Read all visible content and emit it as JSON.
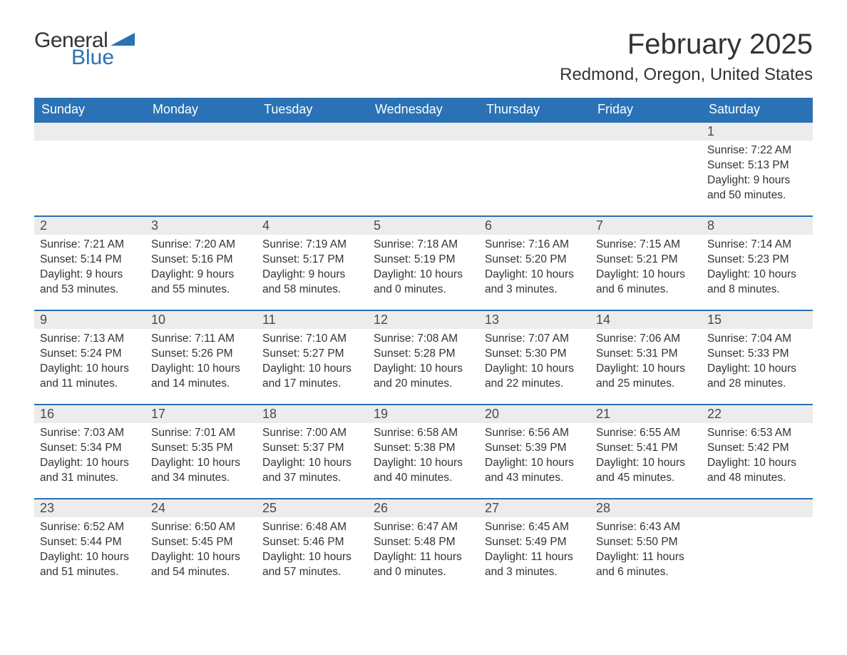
{
  "brand": {
    "word1": "General",
    "word2": "Blue",
    "tri_color": "#2a72b5"
  },
  "header": {
    "month_title": "February 2025",
    "location": "Redmond, Oregon, United States"
  },
  "colors": {
    "header_bg": "#2a72b5",
    "header_text": "#ffffff",
    "daynum_bg": "#ececec",
    "row_border": "#2a72b5",
    "text": "#333333",
    "background": "#ffffff"
  },
  "typography": {
    "title_fontsize": 40,
    "location_fontsize": 24,
    "th_fontsize": 18,
    "daynum_fontsize": 18,
    "body_fontsize": 15.5,
    "font_family": "Segoe UI"
  },
  "calendar": {
    "day_headers": [
      "Sunday",
      "Monday",
      "Tuesday",
      "Wednesday",
      "Thursday",
      "Friday",
      "Saturday"
    ],
    "weeks": [
      [
        null,
        null,
        null,
        null,
        null,
        null,
        {
          "n": "1",
          "sunrise": "7:22 AM",
          "sunset": "5:13 PM",
          "dl_h": "9",
          "dl_m": "50"
        }
      ],
      [
        {
          "n": "2",
          "sunrise": "7:21 AM",
          "sunset": "5:14 PM",
          "dl_h": "9",
          "dl_m": "53"
        },
        {
          "n": "3",
          "sunrise": "7:20 AM",
          "sunset": "5:16 PM",
          "dl_h": "9",
          "dl_m": "55"
        },
        {
          "n": "4",
          "sunrise": "7:19 AM",
          "sunset": "5:17 PM",
          "dl_h": "9",
          "dl_m": "58"
        },
        {
          "n": "5",
          "sunrise": "7:18 AM",
          "sunset": "5:19 PM",
          "dl_h": "10",
          "dl_m": "0"
        },
        {
          "n": "6",
          "sunrise": "7:16 AM",
          "sunset": "5:20 PM",
          "dl_h": "10",
          "dl_m": "3"
        },
        {
          "n": "7",
          "sunrise": "7:15 AM",
          "sunset": "5:21 PM",
          "dl_h": "10",
          "dl_m": "6"
        },
        {
          "n": "8",
          "sunrise": "7:14 AM",
          "sunset": "5:23 PM",
          "dl_h": "10",
          "dl_m": "8"
        }
      ],
      [
        {
          "n": "9",
          "sunrise": "7:13 AM",
          "sunset": "5:24 PM",
          "dl_h": "10",
          "dl_m": "11"
        },
        {
          "n": "10",
          "sunrise": "7:11 AM",
          "sunset": "5:26 PM",
          "dl_h": "10",
          "dl_m": "14"
        },
        {
          "n": "11",
          "sunrise": "7:10 AM",
          "sunset": "5:27 PM",
          "dl_h": "10",
          "dl_m": "17"
        },
        {
          "n": "12",
          "sunrise": "7:08 AM",
          "sunset": "5:28 PM",
          "dl_h": "10",
          "dl_m": "20"
        },
        {
          "n": "13",
          "sunrise": "7:07 AM",
          "sunset": "5:30 PM",
          "dl_h": "10",
          "dl_m": "22"
        },
        {
          "n": "14",
          "sunrise": "7:06 AM",
          "sunset": "5:31 PM",
          "dl_h": "10",
          "dl_m": "25"
        },
        {
          "n": "15",
          "sunrise": "7:04 AM",
          "sunset": "5:33 PM",
          "dl_h": "10",
          "dl_m": "28"
        }
      ],
      [
        {
          "n": "16",
          "sunrise": "7:03 AM",
          "sunset": "5:34 PM",
          "dl_h": "10",
          "dl_m": "31"
        },
        {
          "n": "17",
          "sunrise": "7:01 AM",
          "sunset": "5:35 PM",
          "dl_h": "10",
          "dl_m": "34"
        },
        {
          "n": "18",
          "sunrise": "7:00 AM",
          "sunset": "5:37 PM",
          "dl_h": "10",
          "dl_m": "37"
        },
        {
          "n": "19",
          "sunrise": "6:58 AM",
          "sunset": "5:38 PM",
          "dl_h": "10",
          "dl_m": "40"
        },
        {
          "n": "20",
          "sunrise": "6:56 AM",
          "sunset": "5:39 PM",
          "dl_h": "10",
          "dl_m": "43"
        },
        {
          "n": "21",
          "sunrise": "6:55 AM",
          "sunset": "5:41 PM",
          "dl_h": "10",
          "dl_m": "45"
        },
        {
          "n": "22",
          "sunrise": "6:53 AM",
          "sunset": "5:42 PM",
          "dl_h": "10",
          "dl_m": "48"
        }
      ],
      [
        {
          "n": "23",
          "sunrise": "6:52 AM",
          "sunset": "5:44 PM",
          "dl_h": "10",
          "dl_m": "51"
        },
        {
          "n": "24",
          "sunrise": "6:50 AM",
          "sunset": "5:45 PM",
          "dl_h": "10",
          "dl_m": "54"
        },
        {
          "n": "25",
          "sunrise": "6:48 AM",
          "sunset": "5:46 PM",
          "dl_h": "10",
          "dl_m": "57"
        },
        {
          "n": "26",
          "sunrise": "6:47 AM",
          "sunset": "5:48 PM",
          "dl_h": "11",
          "dl_m": "0"
        },
        {
          "n": "27",
          "sunrise": "6:45 AM",
          "sunset": "5:49 PM",
          "dl_h": "11",
          "dl_m": "3"
        },
        {
          "n": "28",
          "sunrise": "6:43 AM",
          "sunset": "5:50 PM",
          "dl_h": "11",
          "dl_m": "6"
        },
        null
      ]
    ],
    "labels": {
      "sunrise": "Sunrise:",
      "sunset": "Sunset:",
      "daylight_prefix": "Daylight:",
      "hours_word": "hours",
      "and_word": "and",
      "minutes_word": "minutes."
    }
  }
}
